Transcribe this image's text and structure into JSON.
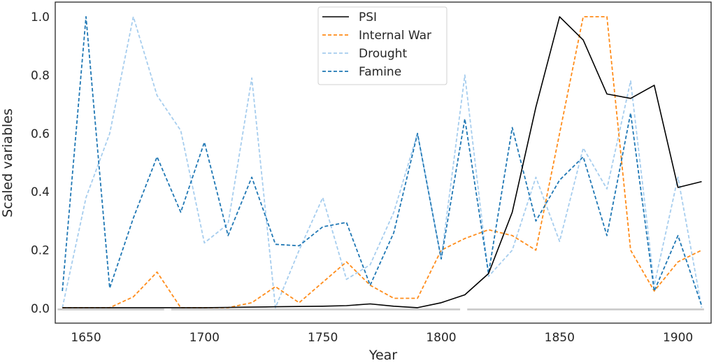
{
  "chart_data": {
    "type": "line",
    "xlabel": "Year",
    "ylabel": "Scaled variables",
    "xlim": [
      1637,
      1914
    ],
    "ylim": [
      -0.05,
      1.05
    ],
    "xticks": [
      1650,
      1700,
      1750,
      1800,
      1850,
      1900
    ],
    "yticks": [
      0.0,
      0.2,
      0.4,
      0.6,
      0.8,
      1.0
    ],
    "xtick_labels": [
      "1650",
      "1700",
      "1750",
      "1800",
      "1850",
      "1900"
    ],
    "ytick_labels": [
      "0.0",
      "0.2",
      "0.4",
      "0.6",
      "0.8",
      "1.0"
    ],
    "grid": false,
    "legend_position": "top-center",
    "x": [
      1640,
      1650,
      1660,
      1670,
      1680,
      1690,
      1700,
      1710,
      1720,
      1730,
      1740,
      1750,
      1760,
      1770,
      1780,
      1790,
      1800,
      1810,
      1820,
      1830,
      1840,
      1850,
      1860,
      1870,
      1880,
      1890,
      1900,
      1910
    ],
    "series": [
      {
        "name": "PSI",
        "color": "#000000",
        "style": "solid",
        "values": [
          0.003,
          0.003,
          0.003,
          0.003,
          0.003,
          0.003,
          0.003,
          0.004,
          0.005,
          0.006,
          0.007,
          0.008,
          0.01,
          0.016,
          0.008,
          0.003,
          0.02,
          0.047,
          0.12,
          0.33,
          0.69,
          1.0,
          0.92,
          0.735,
          0.72,
          0.765,
          0.415,
          0.435
        ]
      },
      {
        "name": "Internal War",
        "color": "#ff8c1a",
        "style": "dashed",
        "values": [
          0.003,
          0.003,
          0.003,
          0.04,
          0.125,
          0.003,
          0.003,
          0.003,
          0.02,
          0.075,
          0.02,
          0.09,
          0.16,
          0.08,
          0.035,
          0.035,
          0.2,
          0.24,
          0.27,
          0.25,
          0.2,
          0.6,
          1.0,
          1.0,
          0.2,
          0.06,
          0.16,
          0.2
        ]
      },
      {
        "name": "Drought",
        "color": "#a6cdee",
        "style": "dashed",
        "values": [
          0.003,
          0.38,
          0.6,
          1.0,
          0.73,
          0.61,
          0.225,
          0.29,
          0.79,
          0.003,
          0.2,
          0.38,
          0.1,
          0.15,
          0.33,
          0.6,
          0.17,
          0.8,
          0.11,
          0.2,
          0.45,
          0.23,
          0.55,
          0.41,
          0.78,
          0.08,
          0.45,
          0.003
        ]
      },
      {
        "name": "Famine",
        "color": "#1f77b4",
        "style": "dashed",
        "values": [
          0.06,
          1.0,
          0.07,
          0.31,
          0.52,
          0.33,
          0.57,
          0.25,
          0.45,
          0.22,
          0.215,
          0.28,
          0.295,
          0.08,
          0.26,
          0.6,
          0.17,
          0.65,
          0.12,
          0.62,
          0.3,
          0.44,
          0.52,
          0.25,
          0.67,
          0.06,
          0.25,
          0.01
        ]
      }
    ]
  }
}
